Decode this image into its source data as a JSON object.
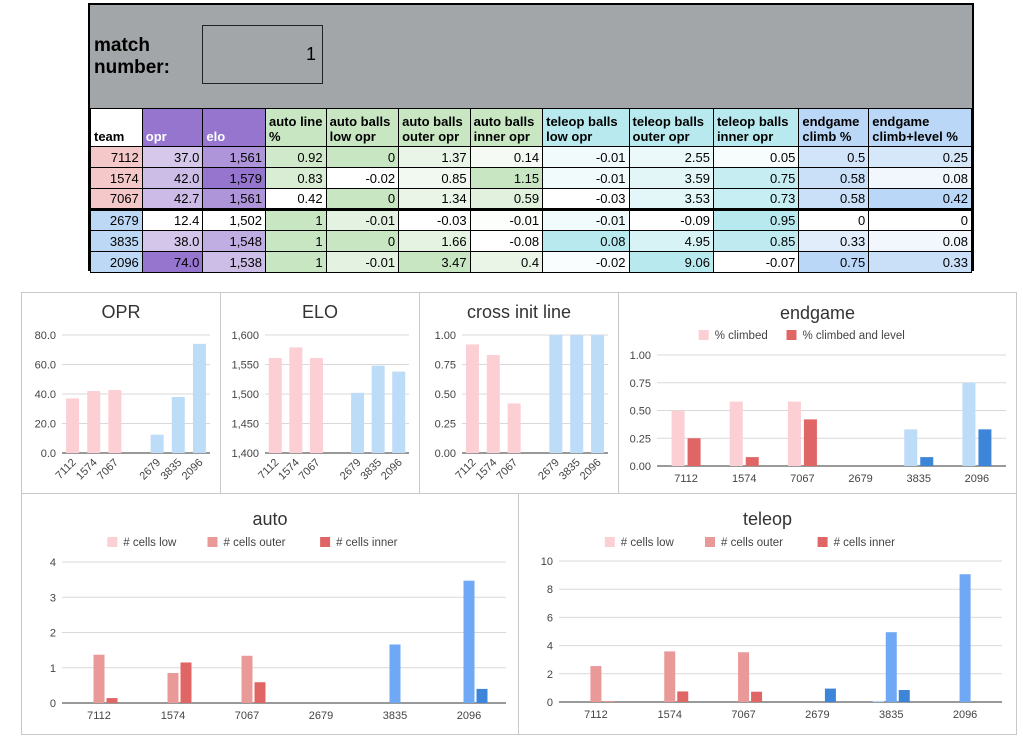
{
  "header": {
    "match_label_line1": "match",
    "match_label_line2": "number:",
    "match_number": "1"
  },
  "table": {
    "columns": [
      {
        "key": "team",
        "label": "team",
        "bg": "#ffffff"
      },
      {
        "key": "opr",
        "label": "opr",
        "bg": "#9575cd"
      },
      {
        "key": "elo",
        "label": "elo",
        "bg": "#9575cd"
      },
      {
        "key": "auto_line",
        "label": "auto line %",
        "bg": "#c9e6c3"
      },
      {
        "key": "auto_low",
        "label": "auto balls low opr",
        "bg": "#c9e6c3"
      },
      {
        "key": "auto_outer",
        "label": "auto balls outer opr",
        "bg": "#c9e6c3"
      },
      {
        "key": "auto_inner",
        "label": "auto balls inner opr",
        "bg": "#c9e6c3"
      },
      {
        "key": "tele_low",
        "label": "teleop balls low opr",
        "bg": "#b8e9ee"
      },
      {
        "key": "tele_outer",
        "label": "teleop balls outer opr",
        "bg": "#b8e9ee"
      },
      {
        "key": "tele_inner",
        "label": "teleop balls inner opr",
        "bg": "#b8e9ee"
      },
      {
        "key": "end_climb",
        "label": "endgame climb %",
        "bg": "#bbd7f7"
      },
      {
        "key": "end_level",
        "label": "endgame climb+level %",
        "bg": "#bbd7f7"
      }
    ],
    "rows": [
      {
        "alliance": "red",
        "cells": [
          "7112",
          "37.0",
          "1,561",
          "0.92",
          "0",
          "1.37",
          "0.14",
          "-0.01",
          "2.55",
          "0.05",
          "0.5",
          "0.25"
        ]
      },
      {
        "alliance": "red",
        "cells": [
          "1574",
          "42.0",
          "1,579",
          "0.83",
          "-0.02",
          "0.85",
          "1.15",
          "-0.01",
          "3.59",
          "0.75",
          "0.58",
          "0.08"
        ]
      },
      {
        "alliance": "red",
        "cells": [
          "7067",
          "42.7",
          "1,561",
          "0.42",
          "0",
          "1.34",
          "0.59",
          "-0.03",
          "3.53",
          "0.73",
          "0.58",
          "0.42"
        ]
      },
      {
        "alliance": "blue",
        "cells": [
          "2679",
          "12.4",
          "1,502",
          "1",
          "-0.01",
          "-0.03",
          "-0.01",
          "-0.01",
          "-0.09",
          "0.95",
          "0",
          "0"
        ]
      },
      {
        "alliance": "blue",
        "cells": [
          "3835",
          "38.0",
          "1,548",
          "1",
          "0",
          "1.66",
          "-0.08",
          "0.08",
          "4.95",
          "0.85",
          "0.33",
          "0.08"
        ]
      },
      {
        "alliance": "blue",
        "cells": [
          "2096",
          "74.0",
          "1,538",
          "1",
          "-0.01",
          "3.47",
          "0.4",
          "-0.02",
          "9.06",
          "-0.07",
          "0.75",
          "0.33"
        ]
      }
    ],
    "team_colors": {
      "red": "#f4c7c9",
      "blue": "#bcd8f5"
    }
  },
  "chart_data": [
    {
      "id": "opr",
      "type": "bar",
      "title": "OPR",
      "categories": [
        "7112",
        "1574",
        "7067",
        "",
        "2679",
        "3835",
        "2096"
      ],
      "series": [
        {
          "values": [
            37.0,
            42.0,
            42.7,
            null,
            12.4,
            38.0,
            74.0
          ],
          "colors": [
            "#fbcfd3",
            "#fbcfd3",
            "#fbcfd3",
            "#fbcfd3",
            "#bddcf8",
            "#bddcf8",
            "#bddcf8"
          ]
        }
      ],
      "yticks": [
        "0.0",
        "20.0",
        "40.0",
        "60.0",
        "80.0"
      ],
      "ylim": [
        0,
        80
      ],
      "legend": "none"
    },
    {
      "id": "elo",
      "type": "bar",
      "title": "ELO",
      "categories": [
        "7112",
        "1574",
        "7067",
        "",
        "2679",
        "3835",
        "2096"
      ],
      "series": [
        {
          "values": [
            1561,
            1579,
            1561,
            null,
            1502,
            1548,
            1538
          ],
          "colors": [
            "#fbcfd3",
            "#fbcfd3",
            "#fbcfd3",
            "#fbcfd3",
            "#bddcf8",
            "#bddcf8",
            "#bddcf8"
          ]
        }
      ],
      "yticks": [
        "1,400",
        "1,450",
        "1,500",
        "1,550",
        "1,600"
      ],
      "ylim": [
        1400,
        1600
      ],
      "legend": "none"
    },
    {
      "id": "cross",
      "type": "bar",
      "title": "cross init line",
      "categories": [
        "7112",
        "1574",
        "7067",
        "",
        "2679",
        "3835",
        "2096"
      ],
      "series": [
        {
          "values": [
            0.92,
            0.83,
            0.42,
            null,
            1,
            1,
            1
          ],
          "colors": [
            "#fbcfd3",
            "#fbcfd3",
            "#fbcfd3",
            "#fbcfd3",
            "#bddcf8",
            "#bddcf8",
            "#bddcf8"
          ]
        }
      ],
      "yticks": [
        "0.00",
        "0.25",
        "0.50",
        "0.75",
        "1.00"
      ],
      "ylim": [
        0,
        1
      ],
      "legend": "none"
    },
    {
      "id": "endgame",
      "type": "bar",
      "title": "endgame",
      "categories": [
        "7112",
        "1574",
        "7067",
        "2679",
        "3835",
        "2096"
      ],
      "series": [
        {
          "name": "% climbed",
          "values": [
            0.5,
            0.58,
            0.58,
            0,
            0.33,
            0.75
          ],
          "colors": [
            "#fbcfd3",
            "#fbcfd3",
            "#fbcfd3",
            "#bddcf8",
            "#bddcf8",
            "#bddcf8"
          ]
        },
        {
          "name": "% climbed and level",
          "values": [
            0.25,
            0.08,
            0.42,
            0,
            0.08,
            0.33
          ],
          "colors": [
            "#e06666",
            "#e06666",
            "#e06666",
            "#3d85d8",
            "#3d85d8",
            "#3d85d8"
          ]
        }
      ],
      "legend_colors": [
        "#fbcfd3",
        "#e06666"
      ],
      "yticks": [
        "0.00",
        "0.25",
        "0.50",
        "0.75",
        "1.00"
      ],
      "ylim": [
        0,
        1
      ],
      "legend": "top"
    },
    {
      "id": "auto",
      "type": "bar",
      "title": "auto",
      "categories": [
        "7112",
        "1574",
        "7067",
        "2679",
        "3835",
        "2096"
      ],
      "series": [
        {
          "name": "# cells low",
          "values": [
            0,
            -0.02,
            0,
            -0.01,
            0,
            -0.01
          ],
          "colors": [
            "#fbcfd3",
            "#fbcfd3",
            "#fbcfd3",
            "#bddcf8",
            "#bddcf8",
            "#bddcf8"
          ]
        },
        {
          "name": "# cells outer",
          "values": [
            1.37,
            0.85,
            1.34,
            -0.03,
            1.66,
            3.47
          ],
          "colors": [
            "#ea9999",
            "#ea9999",
            "#ea9999",
            "#6fa8f5",
            "#6fa8f5",
            "#6fa8f5"
          ]
        },
        {
          "name": "# cells inner",
          "values": [
            0.14,
            1.15,
            0.59,
            -0.01,
            -0.08,
            0.4
          ],
          "colors": [
            "#e06666",
            "#e06666",
            "#e06666",
            "#3d85d8",
            "#3d85d8",
            "#3d85d8"
          ]
        }
      ],
      "legend_colors": [
        "#fbcfd3",
        "#ea9999",
        "#e06666"
      ],
      "yticks": [
        "0",
        "1",
        "2",
        "3",
        "4"
      ],
      "ylim": [
        0,
        4
      ],
      "legend": "top"
    },
    {
      "id": "teleop",
      "type": "bar",
      "title": "teleop",
      "categories": [
        "7112",
        "1574",
        "7067",
        "2679",
        "3835",
        "2096"
      ],
      "series": [
        {
          "name": "# cells low",
          "values": [
            -0.01,
            -0.01,
            -0.03,
            -0.01,
            0.08,
            -0.02
          ],
          "colors": [
            "#fbcfd3",
            "#fbcfd3",
            "#fbcfd3",
            "#bddcf8",
            "#bddcf8",
            "#bddcf8"
          ]
        },
        {
          "name": "# cells outer",
          "values": [
            2.55,
            3.59,
            3.53,
            -0.09,
            4.95,
            9.06
          ],
          "colors": [
            "#ea9999",
            "#ea9999",
            "#ea9999",
            "#6fa8f5",
            "#6fa8f5",
            "#6fa8f5"
          ]
        },
        {
          "name": "# cells inner",
          "values": [
            0.05,
            0.75,
            0.73,
            0.95,
            0.85,
            -0.07
          ],
          "colors": [
            "#e06666",
            "#e06666",
            "#e06666",
            "#3d85d8",
            "#3d85d8",
            "#3d85d8"
          ]
        }
      ],
      "legend_colors": [
        "#fbcfd3",
        "#ea9999",
        "#e06666"
      ],
      "yticks": [
        "0",
        "2",
        "4",
        "6",
        "8",
        "10"
      ],
      "ylim": [
        0,
        10
      ],
      "legend": "top"
    }
  ]
}
